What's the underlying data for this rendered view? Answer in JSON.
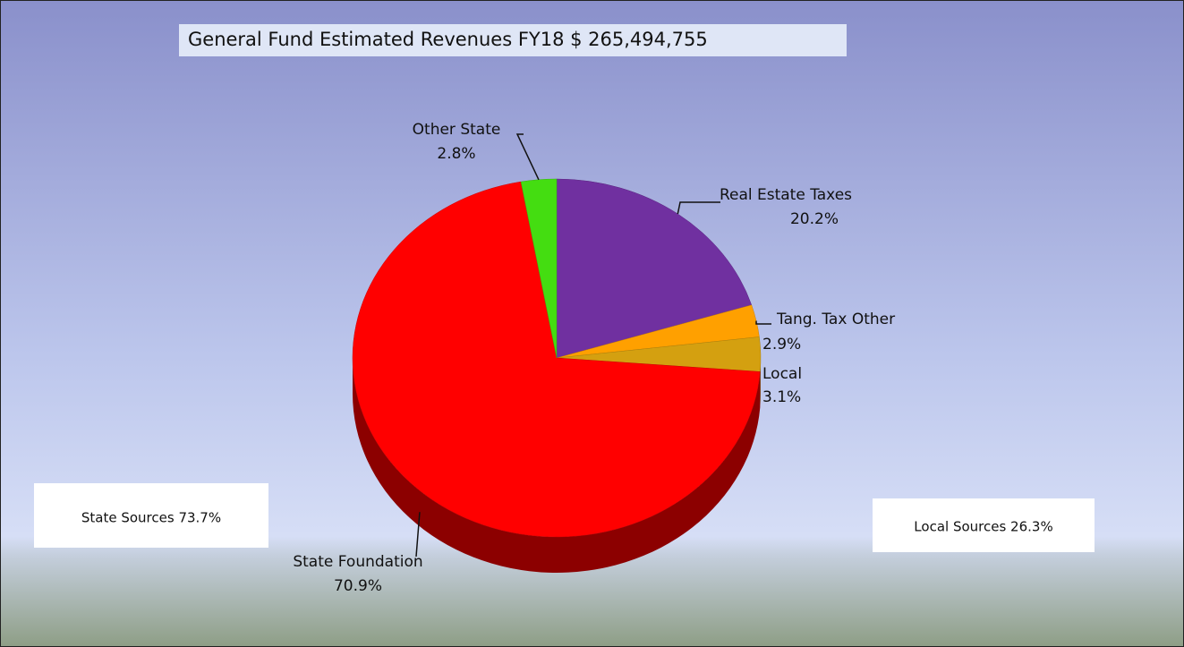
{
  "chart_data": {
    "type": "pie",
    "title": "General Fund Estimated Revenues FY18 $ 265,494,755",
    "categories": [
      "Real Estate Taxes",
      "Tang. Tax Other",
      "Local",
      "State Foundation",
      "Other State"
    ],
    "values": [
      20.2,
      2.9,
      3.1,
      70.9,
      2.8
    ],
    "value_labels": [
      "20.2%",
      "2.9%",
      "3.1%",
      "70.9%",
      "2.8%"
    ],
    "colors": [
      "#7030a0",
      "#ffa000",
      "#d4a010",
      "#ff0000",
      "#44dd11"
    ],
    "annotations": [
      {
        "text": "State Sources 73.7%",
        "color": "#ff0000"
      },
      {
        "text": "Local Sources 26.3%",
        "color": "#2222cc"
      }
    ]
  }
}
